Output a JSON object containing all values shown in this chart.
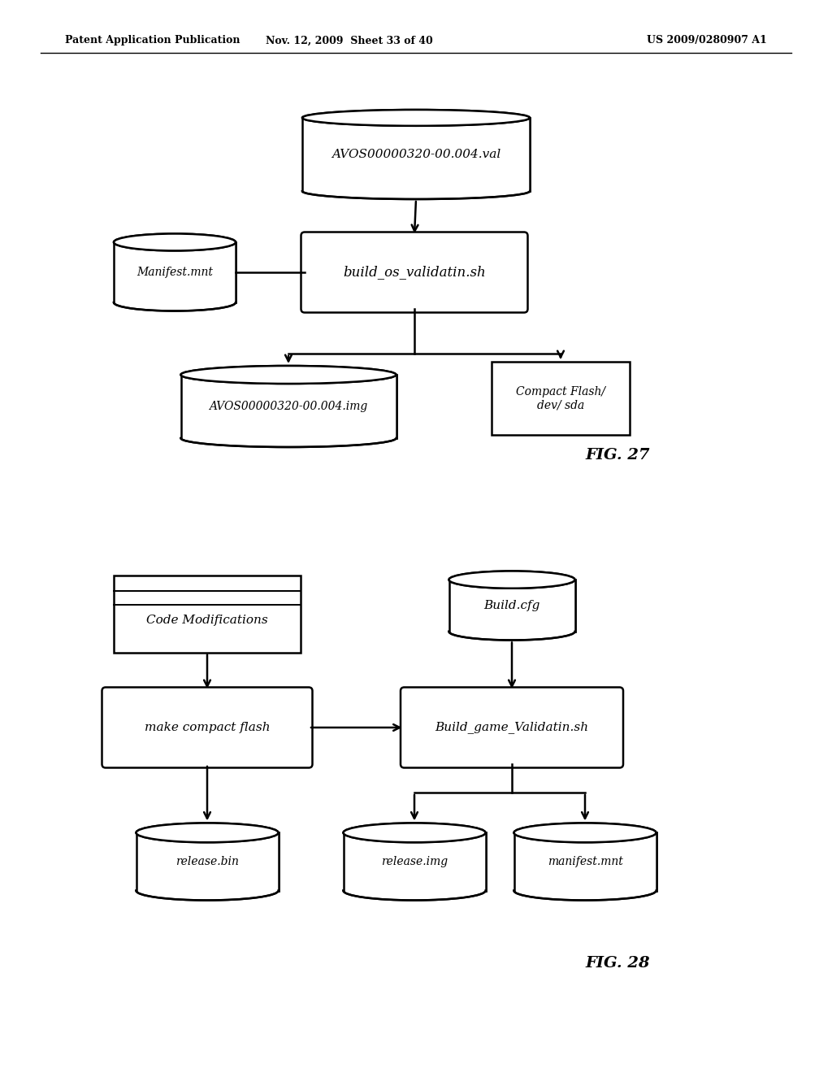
{
  "bg_color": "#ffffff",
  "header_left": "Patent Application Publication",
  "header_mid": "Nov. 12, 2009  Sheet 33 of 40",
  "header_right": "US 2009/0280907 A1",
  "fig27_label": "FIG. 27",
  "fig28_label": "FIG. 28"
}
